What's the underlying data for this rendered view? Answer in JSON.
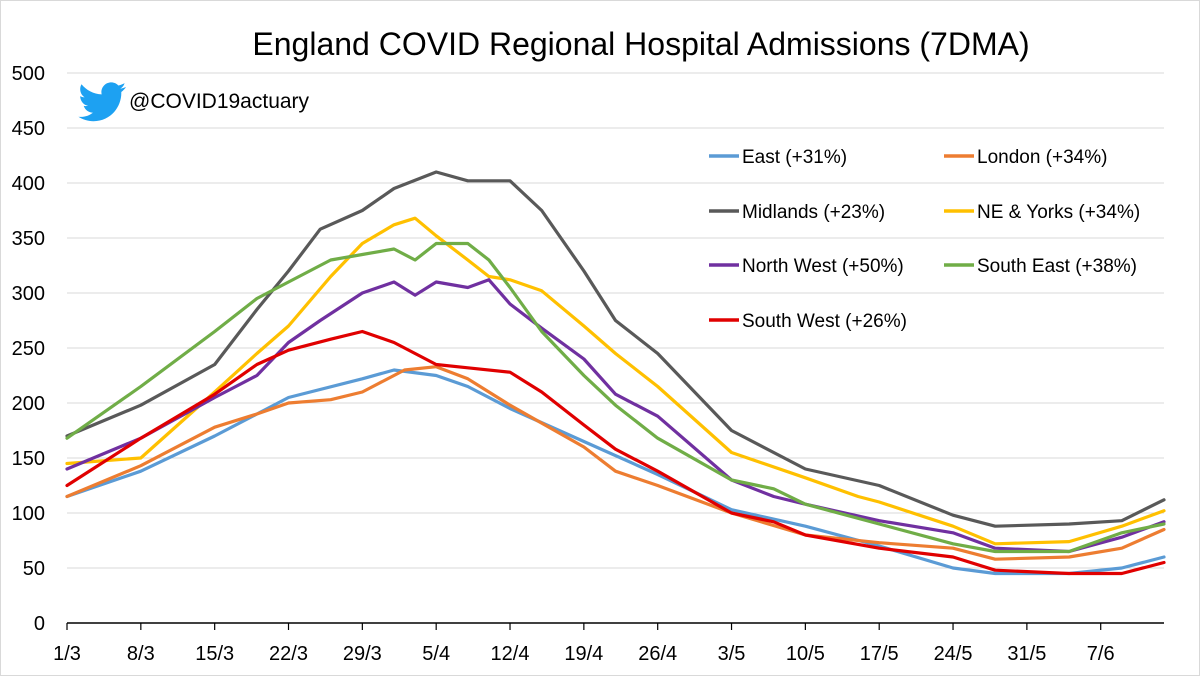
{
  "chart_data": {
    "type": "line",
    "title": "England COVID Regional Hospital Admissions (7DMA)",
    "handle": "@COVID19actuary",
    "xlabel": "",
    "ylabel": "",
    "ylim": [
      0,
      500
    ],
    "yticks": [
      0,
      50,
      100,
      150,
      200,
      250,
      300,
      350,
      400,
      450,
      500
    ],
    "grid": "horizontal",
    "legend_position": "top-right",
    "x_day_range": [
      0,
      104
    ],
    "x_ticks": [
      {
        "day": 0,
        "label": "1/3"
      },
      {
        "day": 7,
        "label": "8/3"
      },
      {
        "day": 14,
        "label": "15/3"
      },
      {
        "day": 21,
        "label": "22/3"
      },
      {
        "day": 28,
        "label": "29/3"
      },
      {
        "day": 35,
        "label": "5/4"
      },
      {
        "day": 42,
        "label": "12/4"
      },
      {
        "day": 49,
        "label": "19/4"
      },
      {
        "day": 56,
        "label": "26/4"
      },
      {
        "day": 63,
        "label": "3/5"
      },
      {
        "day": 70,
        "label": "10/5"
      },
      {
        "day": 77,
        "label": "17/5"
      },
      {
        "day": 84,
        "label": "24/5"
      },
      {
        "day": 91,
        "label": "31/5"
      },
      {
        "day": 98,
        "label": "7/6"
      }
    ],
    "series": [
      {
        "name": "East (+31%)",
        "color": "#5b9bd5",
        "points": [
          [
            0,
            115
          ],
          [
            7,
            138
          ],
          [
            14,
            170
          ],
          [
            18,
            190
          ],
          [
            21,
            205
          ],
          [
            28,
            222
          ],
          [
            31,
            230
          ],
          [
            35,
            225
          ],
          [
            38,
            215
          ],
          [
            42,
            195
          ],
          [
            49,
            165
          ],
          [
            56,
            135
          ],
          [
            63,
            103
          ],
          [
            70,
            88
          ],
          [
            77,
            70
          ],
          [
            84,
            50
          ],
          [
            88,
            45
          ],
          [
            95,
            45
          ],
          [
            100,
            50
          ],
          [
            104,
            60
          ]
        ]
      },
      {
        "name": "London (+34%)",
        "color": "#ed7d31",
        "points": [
          [
            0,
            115
          ],
          [
            7,
            143
          ],
          [
            14,
            178
          ],
          [
            18,
            190
          ],
          [
            21,
            200
          ],
          [
            25,
            203
          ],
          [
            28,
            210
          ],
          [
            32,
            230
          ],
          [
            35,
            233
          ],
          [
            38,
            222
          ],
          [
            42,
            198
          ],
          [
            49,
            160
          ],
          [
            52,
            138
          ],
          [
            56,
            125
          ],
          [
            63,
            100
          ],
          [
            70,
            80
          ],
          [
            77,
            73
          ],
          [
            84,
            68
          ],
          [
            88,
            58
          ],
          [
            95,
            60
          ],
          [
            100,
            68
          ],
          [
            104,
            85
          ]
        ]
      },
      {
        "name": "Midlands (+23%)",
        "color": "#595959",
        "points": [
          [
            0,
            170
          ],
          [
            7,
            198
          ],
          [
            14,
            235
          ],
          [
            18,
            285
          ],
          [
            21,
            320
          ],
          [
            24,
            358
          ],
          [
            28,
            375
          ],
          [
            31,
            395
          ],
          [
            35,
            410
          ],
          [
            38,
            402
          ],
          [
            42,
            402
          ],
          [
            45,
            375
          ],
          [
            49,
            320
          ],
          [
            52,
            275
          ],
          [
            56,
            245
          ],
          [
            63,
            175
          ],
          [
            70,
            140
          ],
          [
            77,
            125
          ],
          [
            84,
            98
          ],
          [
            88,
            88
          ],
          [
            95,
            90
          ],
          [
            100,
            93
          ],
          [
            104,
            112
          ]
        ]
      },
      {
        "name": "NE & Yorks (+34%)",
        "color": "#ffc000",
        "points": [
          [
            0,
            145
          ],
          [
            7,
            150
          ],
          [
            14,
            210
          ],
          [
            18,
            245
          ],
          [
            21,
            270
          ],
          [
            25,
            315
          ],
          [
            28,
            345
          ],
          [
            31,
            362
          ],
          [
            33,
            368
          ],
          [
            35,
            352
          ],
          [
            38,
            330
          ],
          [
            40,
            315
          ],
          [
            42,
            312
          ],
          [
            45,
            302
          ],
          [
            49,
            270
          ],
          [
            52,
            245
          ],
          [
            56,
            215
          ],
          [
            63,
            155
          ],
          [
            70,
            132
          ],
          [
            75,
            115
          ],
          [
            77,
            110
          ],
          [
            84,
            88
          ],
          [
            88,
            72
          ],
          [
            95,
            74
          ],
          [
            100,
            88
          ],
          [
            104,
            102
          ]
        ]
      },
      {
        "name": "North West (+50%)",
        "color": "#7030a0",
        "points": [
          [
            0,
            140
          ],
          [
            7,
            168
          ],
          [
            14,
            205
          ],
          [
            18,
            225
          ],
          [
            21,
            255
          ],
          [
            24,
            275
          ],
          [
            28,
            300
          ],
          [
            31,
            310
          ],
          [
            33,
            298
          ],
          [
            35,
            310
          ],
          [
            38,
            305
          ],
          [
            40,
            312
          ],
          [
            42,
            290
          ],
          [
            45,
            268
          ],
          [
            49,
            240
          ],
          [
            52,
            208
          ],
          [
            56,
            188
          ],
          [
            63,
            130
          ],
          [
            67,
            115
          ],
          [
            70,
            108
          ],
          [
            77,
            93
          ],
          [
            84,
            82
          ],
          [
            88,
            68
          ],
          [
            95,
            65
          ],
          [
            100,
            78
          ],
          [
            104,
            92
          ]
        ]
      },
      {
        "name": "South East (+38%)",
        "color": "#70ad47",
        "points": [
          [
            0,
            168
          ],
          [
            7,
            215
          ],
          [
            14,
            265
          ],
          [
            18,
            295
          ],
          [
            21,
            310
          ],
          [
            25,
            330
          ],
          [
            28,
            335
          ],
          [
            31,
            340
          ],
          [
            33,
            330
          ],
          [
            35,
            345
          ],
          [
            38,
            345
          ],
          [
            40,
            330
          ],
          [
            42,
            305
          ],
          [
            45,
            265
          ],
          [
            49,
            225
          ],
          [
            52,
            198
          ],
          [
            56,
            168
          ],
          [
            63,
            130
          ],
          [
            67,
            122
          ],
          [
            70,
            108
          ],
          [
            77,
            90
          ],
          [
            84,
            72
          ],
          [
            88,
            65
          ],
          [
            95,
            65
          ],
          [
            100,
            82
          ],
          [
            104,
            90
          ]
        ]
      },
      {
        "name": "South West (+26%)",
        "color": "#e00000",
        "points": [
          [
            0,
            125
          ],
          [
            7,
            168
          ],
          [
            14,
            208
          ],
          [
            18,
            235
          ],
          [
            21,
            248
          ],
          [
            25,
            258
          ],
          [
            28,
            265
          ],
          [
            31,
            255
          ],
          [
            33,
            245
          ],
          [
            35,
            235
          ],
          [
            38,
            232
          ],
          [
            42,
            228
          ],
          [
            45,
            210
          ],
          [
            49,
            180
          ],
          [
            52,
            158
          ],
          [
            56,
            138
          ],
          [
            63,
            100
          ],
          [
            67,
            92
          ],
          [
            70,
            80
          ],
          [
            77,
            68
          ],
          [
            84,
            60
          ],
          [
            88,
            48
          ],
          [
            95,
            45
          ],
          [
            100,
            45
          ],
          [
            104,
            55
          ]
        ]
      }
    ],
    "legend": [
      {
        "series": 0,
        "label": "East (+31%)"
      },
      {
        "series": 1,
        "label": "London (+34%)"
      },
      {
        "series": 2,
        "label": "Midlands (+23%)"
      },
      {
        "series": 3,
        "label": "NE & Yorks (+34%)"
      },
      {
        "series": 4,
        "label": "North West (+50%)"
      },
      {
        "series": 5,
        "label": "South East (+38%)"
      },
      {
        "series": 6,
        "label": "South West (+26%)"
      }
    ],
    "colors": {
      "grid": "#d9d9d9",
      "axis": "#000000",
      "twitter": "#1da1f2"
    }
  }
}
